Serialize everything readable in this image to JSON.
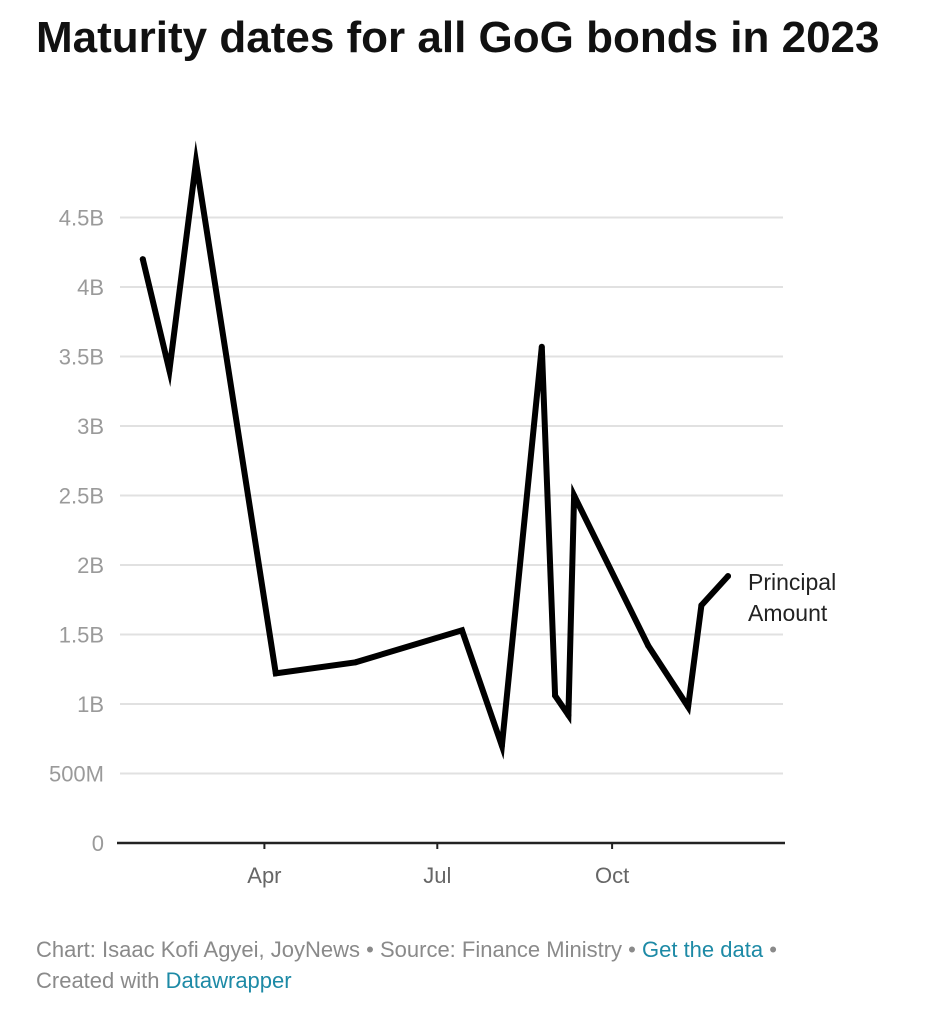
{
  "chart_data": {
    "type": "line",
    "title": "Maturity dates for all GoG bonds in 2023",
    "xlabel": "",
    "ylabel": "",
    "ylim": [
      0,
      5000000000
    ],
    "y_ticks": [
      {
        "value": 0,
        "label": "0"
      },
      {
        "value": 500000000,
        "label": "500M"
      },
      {
        "value": 1000000000,
        "label": "1B"
      },
      {
        "value": 1500000000,
        "label": "1.5B"
      },
      {
        "value": 2000000000,
        "label": "2B"
      },
      {
        "value": 2500000000,
        "label": "2.5B"
      },
      {
        "value": 3000000000,
        "label": "3B"
      },
      {
        "value": 3500000000,
        "label": "3.5B"
      },
      {
        "value": 4000000000,
        "label": "4B"
      },
      {
        "value": 4500000000,
        "label": "4.5B"
      }
    ],
    "x_domain_days": [
      15,
      365
    ],
    "x_ticks": [
      {
        "day": 91,
        "label": "Apr"
      },
      {
        "day": 182,
        "label": "Jul"
      },
      {
        "day": 274,
        "label": "Oct"
      }
    ],
    "series": [
      {
        "name": "Principal Amount",
        "label_lines": [
          "Principal",
          "Amount"
        ],
        "color": "#000000",
        "points": [
          {
            "day": 27,
            "value": 4200000000
          },
          {
            "day": 41,
            "value": 3400000000
          },
          {
            "day": 55,
            "value": 4900000000
          },
          {
            "day": 97,
            "value": 1220000000
          },
          {
            "day": 139,
            "value": 1300000000
          },
          {
            "day": 195,
            "value": 1530000000
          },
          {
            "day": 216,
            "value": 700000000
          },
          {
            "day": 237,
            "value": 3570000000
          },
          {
            "day": 244,
            "value": 1060000000
          },
          {
            "day": 251,
            "value": 920000000
          },
          {
            "day": 254,
            "value": 2500000000
          },
          {
            "day": 293,
            "value": 1420000000
          },
          {
            "day": 314,
            "value": 980000000
          },
          {
            "day": 321,
            "value": 1710000000
          },
          {
            "day": 335,
            "value": 1920000000
          }
        ]
      }
    ]
  },
  "footer": {
    "credit": "Chart: Isaac Kofi Agyei, JoyNews",
    "sep": " • ",
    "source": "Source: Finance Ministry",
    "get_data": "Get the data",
    "created_with": "Created with",
    "tool": "Datawrapper"
  },
  "colors": {
    "line": "#000000",
    "grid": "#e1e1e1",
    "tick_text": "#9a9a9a",
    "link": "#1d8aa6"
  }
}
